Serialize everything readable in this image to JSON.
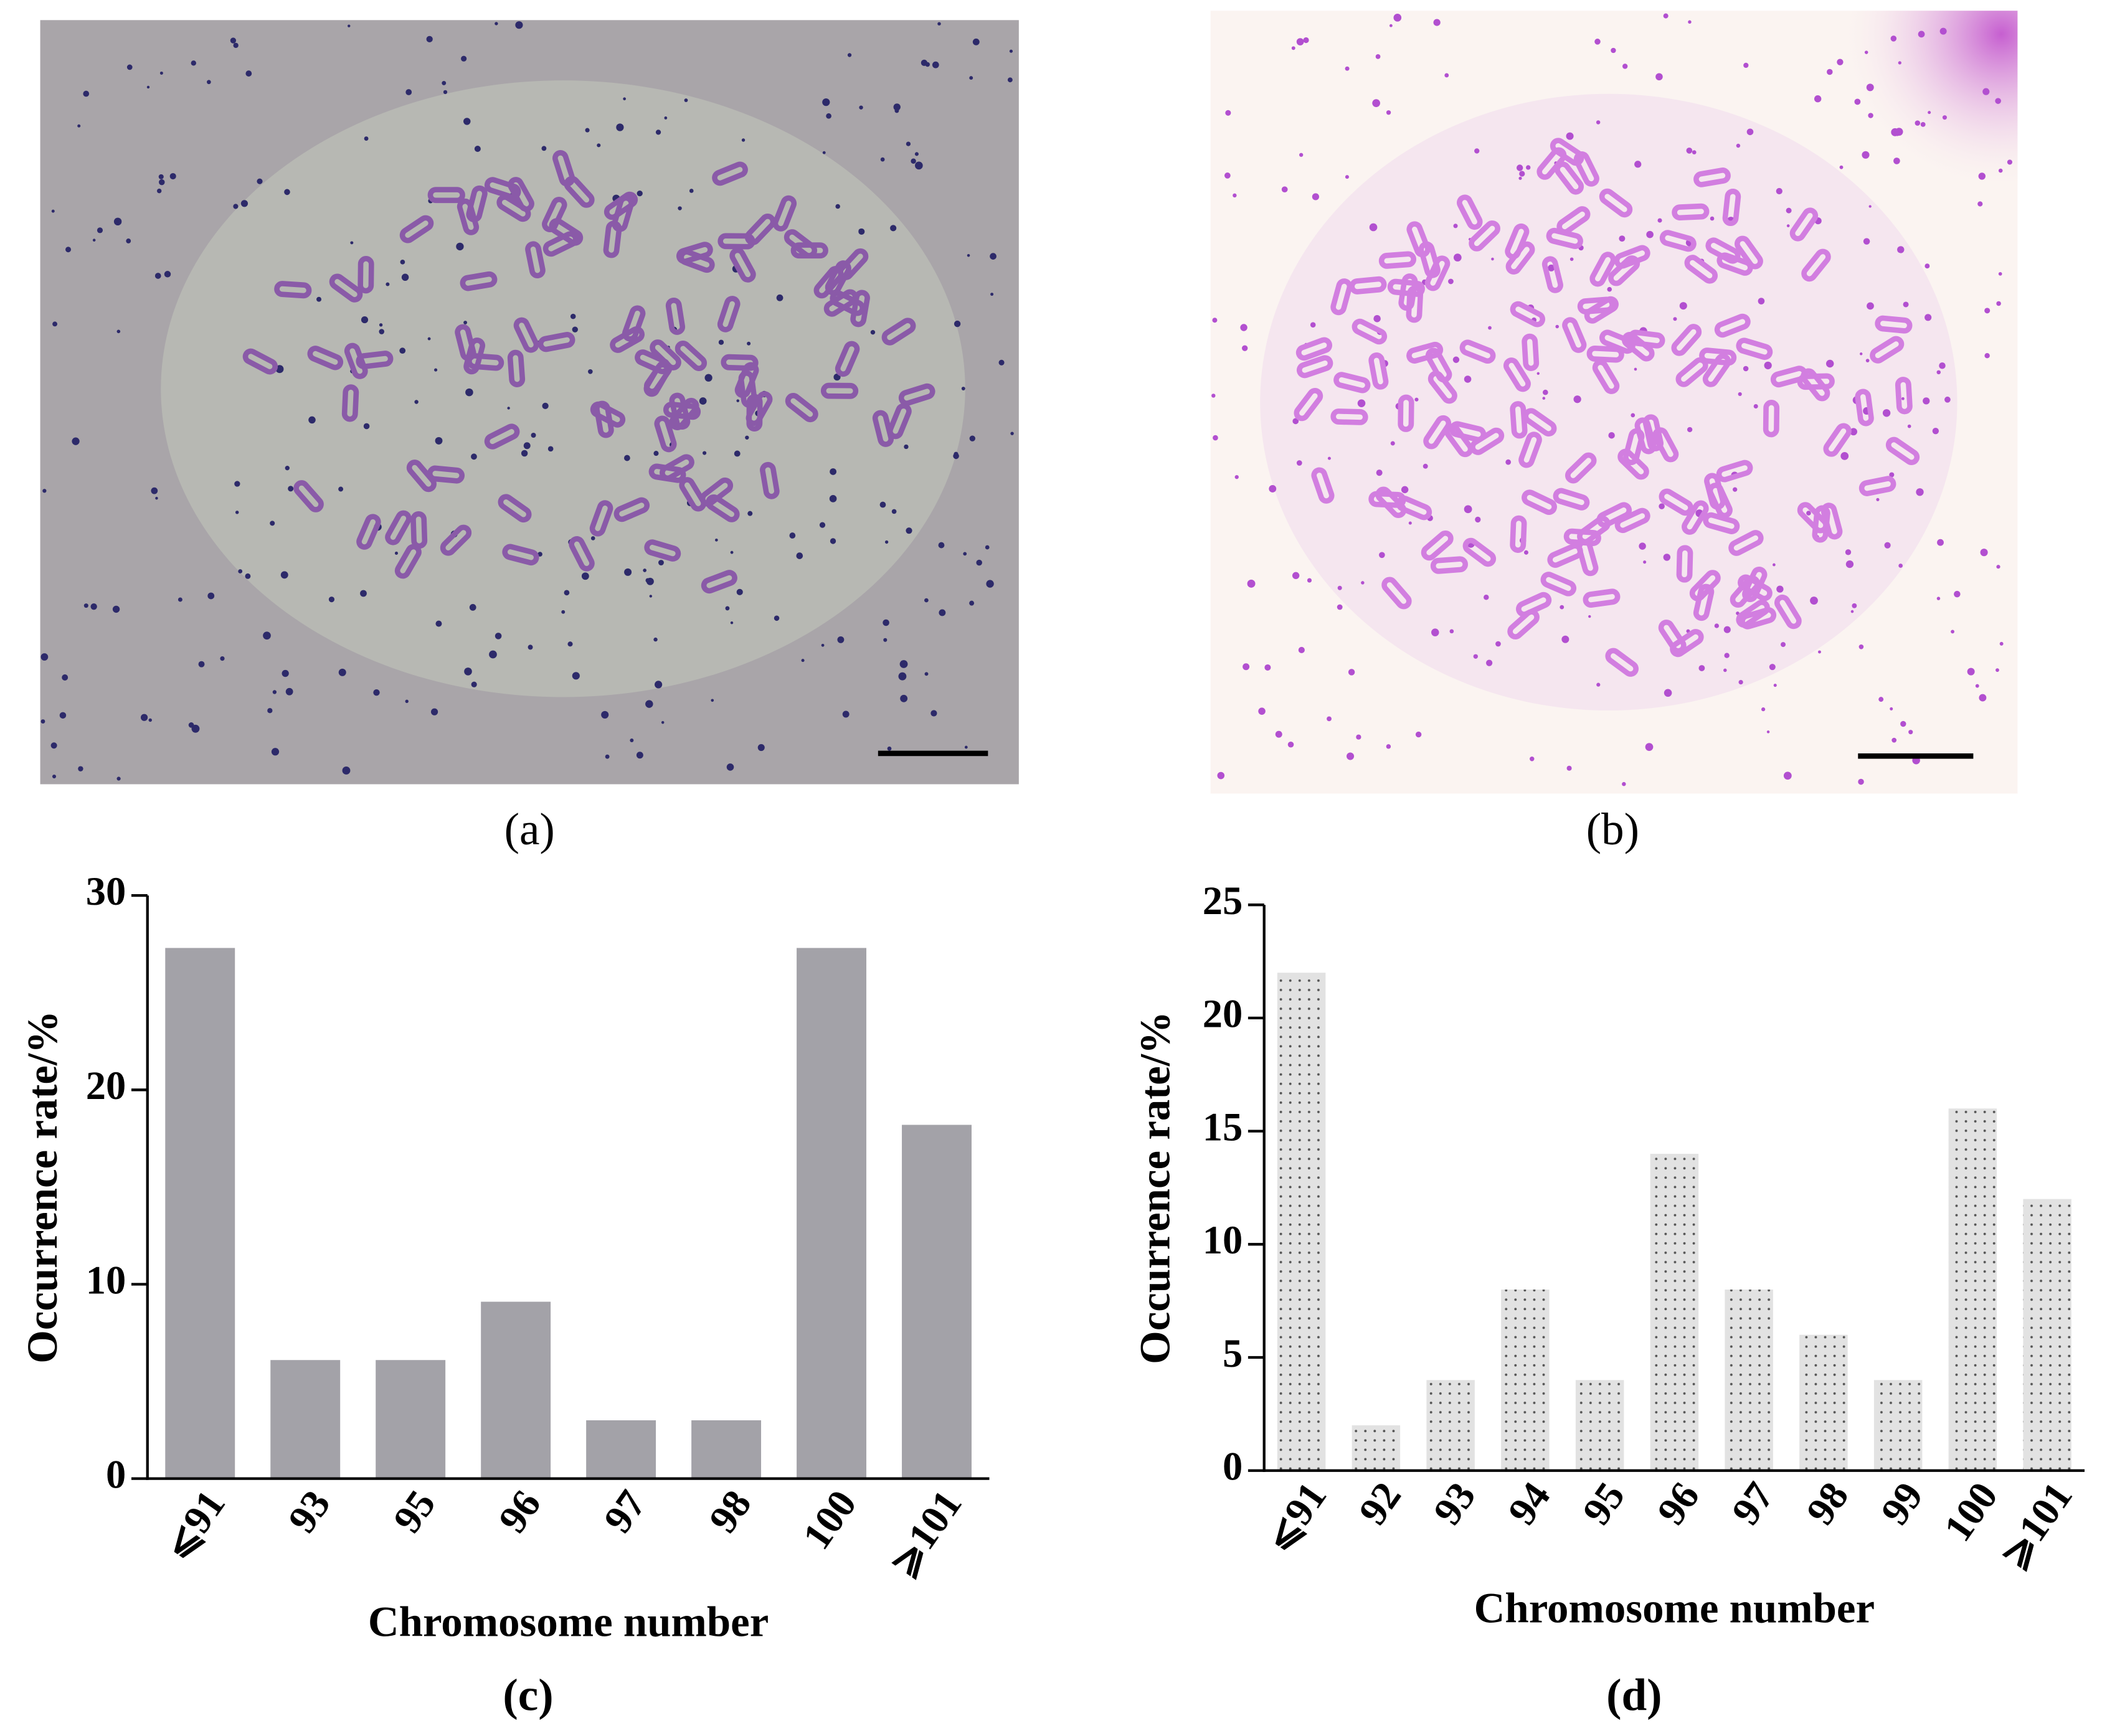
{
  "images": [
    {
      "label": "(a)"
    },
    {
      "label": "(b)"
    }
  ],
  "chart_data": [
    {
      "type": "bar",
      "panel_label": "(c)",
      "x_label": "Chromosome number",
      "y_label": "Occurrence rate/%",
      "categories": [
        "⩽91",
        "93",
        "95",
        "96",
        "97",
        "98",
        "100",
        "⩾101"
      ],
      "values": [
        27.3,
        6.1,
        6.1,
        9.1,
        3,
        3,
        27.3,
        18.2
      ],
      "color": "#a3a2a8",
      "pattern": "solid",
      "ylim": [
        0,
        30
      ],
      "yticks": [
        0,
        10,
        20,
        30
      ]
    },
    {
      "type": "bar",
      "panel_label": "(d)",
      "x_label": "Chromosome number",
      "y_label": "Occurrence rate/%",
      "categories": [
        "⩽91",
        "92",
        "93",
        "94",
        "95",
        "96",
        "97",
        "98",
        "99",
        "100",
        "⩾101"
      ],
      "values": [
        22,
        2,
        4,
        8,
        4,
        14,
        8,
        6,
        4,
        16,
        12
      ],
      "color": "#e2e2e2",
      "pattern": "dots",
      "ylim": [
        0,
        25
      ],
      "yticks": [
        0,
        5,
        10,
        15,
        20,
        25
      ]
    }
  ]
}
